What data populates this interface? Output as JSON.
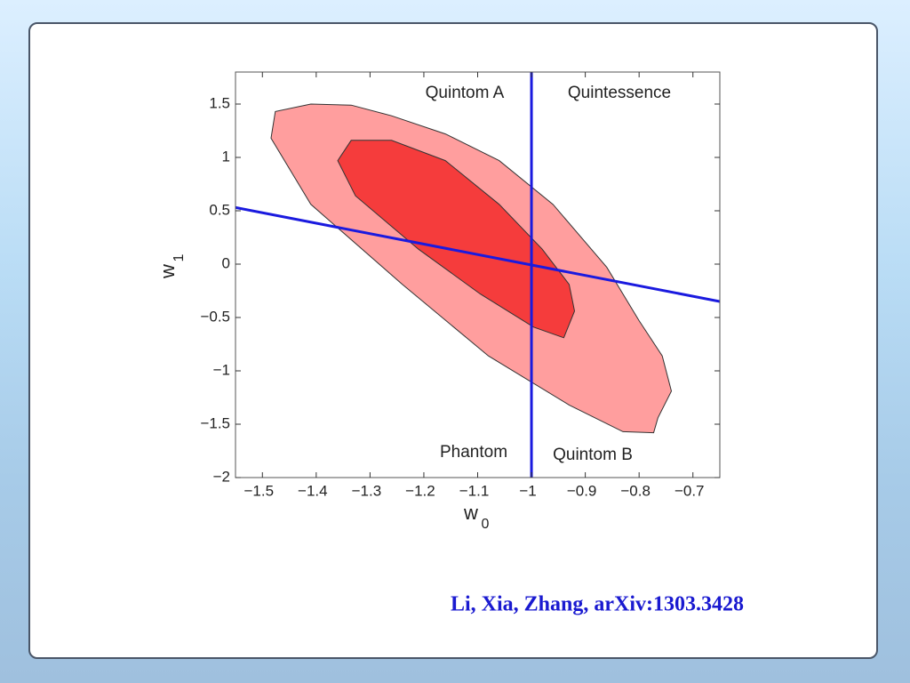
{
  "chart_data": {
    "type": "contour",
    "x_label": "w",
    "x_label_sub": "0",
    "y_label": "w",
    "y_label_sub": "1",
    "xlim": [
      -1.55,
      -0.65
    ],
    "xticks": [
      {
        "value": -1.5,
        "label": "−1.5"
      },
      {
        "value": -1.4,
        "label": "−1.4"
      },
      {
        "value": -1.3,
        "label": "−1.3"
      },
      {
        "value": -1.2,
        "label": "−1.2"
      },
      {
        "value": -1.1,
        "label": "−1.1"
      },
      {
        "value": -1,
        "label": "−1"
      },
      {
        "value": -0.9,
        "label": "−0.9"
      },
      {
        "value": -0.8,
        "label": "−0.8"
      },
      {
        "value": -0.7,
        "label": "−0.7"
      }
    ],
    "ylim": [
      -2,
      1.8
    ],
    "yticks": [
      {
        "value": -2,
        "label": "−2"
      },
      {
        "value": -1.5,
        "label": "−1.5"
      },
      {
        "value": -1,
        "label": "−1"
      },
      {
        "value": -0.5,
        "label": "−0.5"
      },
      0,
      0.5,
      1,
      1.5
    ],
    "regions": [
      {
        "color": "#ff9e9e",
        "x": [
          -1.484,
          -1.476,
          -1.41,
          -1.335,
          -1.26,
          -1.16,
          -1.06,
          -0.96,
          -0.86,
          -0.8,
          -0.757,
          -0.74,
          -0.765,
          -0.773,
          -0.83,
          -0.93,
          -1.08,
          -1.24,
          -1.41
        ],
        "y": [
          1.18,
          1.43,
          1.5,
          1.49,
          1.39,
          1.22,
          0.97,
          0.56,
          -0.03,
          -0.53,
          -0.86,
          -1.19,
          -1.44,
          -1.58,
          -1.57,
          -1.32,
          -0.86,
          -0.19,
          0.56
        ]
      },
      {
        "color": "#f53c3c",
        "x": [
          -1.36,
          -1.335,
          -1.26,
          -1.16,
          -1.06,
          -0.98,
          -0.93,
          -0.92,
          -0.94,
          -0.996,
          -1.095,
          -1.21,
          -1.327
        ],
        "y": [
          0.97,
          1.16,
          1.16,
          0.97,
          0.56,
          0.14,
          -0.19,
          -0.44,
          -0.69,
          -0.59,
          -0.28,
          0.14,
          0.64
        ]
      }
    ],
    "lines": [
      {
        "color": "#1a1adf",
        "x": [
          -1.55,
          -0.65
        ],
        "y": [
          0.53,
          -0.35
        ]
      },
      {
        "color": "#1a1adf",
        "x": [
          -1,
          -1
        ],
        "y": [
          -2,
          1.8
        ]
      }
    ],
    "annotations": [
      "Quintom A",
      "Quintessence",
      "Phantom",
      "Quintom B"
    ],
    "caption": "Li, Xia, Zhang, arXiv:1303.3428"
  }
}
